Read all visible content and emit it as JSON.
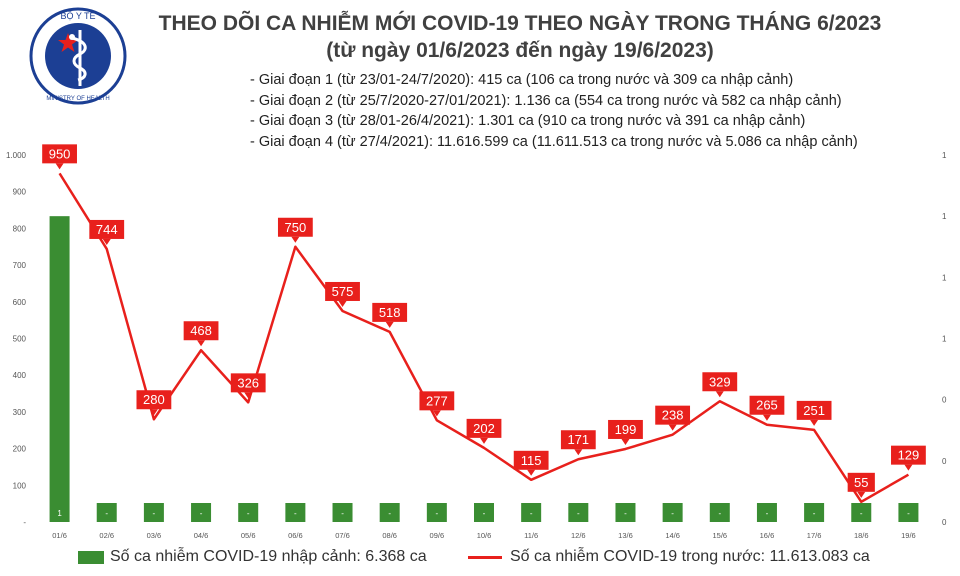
{
  "logo": {
    "top_text": "BỘ Y TẾ",
    "bottom_text": "MINISTRY OF HEALTH",
    "icon": "caduceus-emblem",
    "colors": {
      "ring": "#1c3f94",
      "star": "#e8201c"
    }
  },
  "title": {
    "line1": "THEO DÕI CA NHIỄM MỚI COVID-19 THEO NGÀY TRONG THÁNG 6/2023",
    "line2": "(từ ngày 01/6/2023 đến ngày 19/6/2023)"
  },
  "phases": [
    "- Giai đoạn 1 (từ 23/01-24/7/2020): 415 ca (106 ca trong nước và 309 ca nhập cảnh)",
    "- Giai đoạn 2 (từ 25/7/2020-27/01/2021): 1.136 ca (554 ca trong nước và 582 ca nhập cảnh)",
    "- Giai đoạn 3 (từ 28/01-26/4/2021): 1.301 ca (910 ca trong nước và 391 ca nhập cảnh)",
    "- Giai đoạn 4 (từ 27/4/2021): 11.616.599 ca (11.611.513 ca trong nước và 5.086 ca nhập cảnh)"
  ],
  "legend": {
    "bar_label": "Số ca nhiễm COVID-19 nhập cảnh: 6.368 ca",
    "line_label": "Số ca nhiễm COVID-19 trong nước: 11.613.083 ca"
  },
  "chart_data": {
    "type": "bar+line",
    "categories": [
      "01/6",
      "02/6",
      "03/6",
      "04/6",
      "05/6",
      "06/6",
      "07/6",
      "08/6",
      "09/6",
      "10/6",
      "11/6",
      "12/6",
      "13/6",
      "14/6",
      "15/6",
      "16/6",
      "17/6",
      "18/6",
      "19/6"
    ],
    "yticks_left": [
      "-",
      "100",
      "200",
      "300",
      "400",
      "500",
      "600",
      "700",
      "800",
      "900",
      "1.000"
    ],
    "yticks_right": [
      "0",
      "0",
      "0",
      "1",
      "1",
      "1",
      "1"
    ],
    "ylim_left": [
      0,
      1000
    ],
    "ylim_right": [
      0,
      1.2
    ],
    "series": [
      {
        "kind": "bar",
        "axis": "right",
        "color": "#3a8d32",
        "values": [
          1,
          0,
          0,
          0,
          0,
          0,
          0,
          0,
          0,
          0,
          0,
          0,
          0,
          0,
          0,
          0,
          0,
          0,
          0
        ],
        "labels": [
          "1",
          "-",
          "-",
          "-",
          "-",
          "-",
          "-",
          "-",
          "-",
          "-",
          "-",
          "-",
          "-",
          "-",
          "-",
          "-",
          "-",
          "-",
          "-"
        ]
      },
      {
        "kind": "line",
        "axis": "left",
        "color": "#e8201c",
        "values": [
          950,
          744,
          280,
          468,
          326,
          750,
          575,
          518,
          277,
          202,
          115,
          171,
          199,
          238,
          329,
          265,
          251,
          55,
          129
        ]
      }
    ]
  }
}
